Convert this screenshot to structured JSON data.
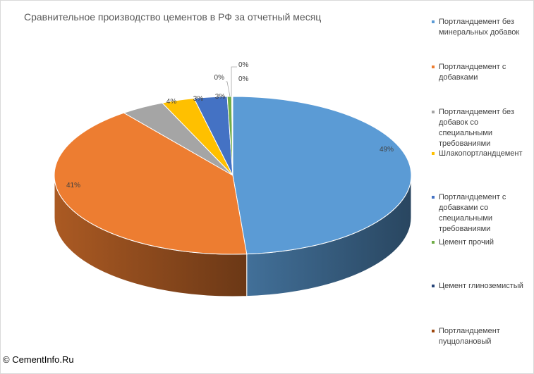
{
  "chart_data": {
    "type": "pie",
    "title": "Сравнительное производство цементов в РФ за отчетный месяц",
    "legend_position": "right",
    "slices": [
      {
        "name": "Портландцемент без минеральных добавок",
        "value": 49,
        "label": "49%",
        "color": "#5b9bd5"
      },
      {
        "name": "Портландцемент с добавками",
        "value": 41,
        "label": "41%",
        "color": "#ed7d31"
      },
      {
        "name": "Портландцемент без добавок со специальными требованиями",
        "value": 4,
        "label": "4%",
        "color": "#a5a5a5"
      },
      {
        "name": "Шлакопортландцемент",
        "value": 3,
        "label": "3%",
        "color": "#ffc000"
      },
      {
        "name": "Портландцемент с добавками со специальными требованиями",
        "value": 3,
        "label": "3%",
        "color": "#4472c4"
      },
      {
        "name": "Цемент прочий",
        "value": 0.4,
        "label": "0%",
        "color": "#70ad47"
      },
      {
        "name": "Цемент глиноземистый",
        "value": 0.05,
        "label": "0%",
        "color": "#264478"
      },
      {
        "name": "Портландцемент пуццолановый",
        "value": 0.05,
        "label": "0%",
        "color": "#9e480e"
      }
    ]
  },
  "watermark": "© CementInfo.Ru"
}
